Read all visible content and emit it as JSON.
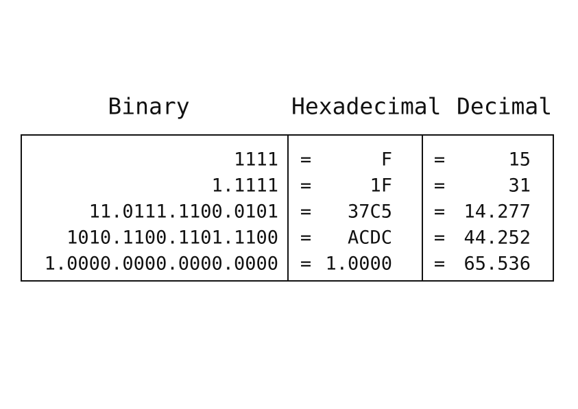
{
  "table": {
    "headers": [
      "Binary",
      "Hexadecimal",
      "Decimal"
    ],
    "rows": [
      [
        "1111",
        "=",
        "F",
        "=",
        "15"
      ],
      [
        "1.1111",
        "=",
        "1F",
        "=",
        "31"
      ],
      [
        "11.0111.1100.0101",
        "=",
        "37C5",
        "=",
        "14.277"
      ],
      [
        "1010.1100.1101.1100",
        "=",
        "ACDC",
        "=",
        "44.252"
      ],
      [
        "1.0000.0000.0000.0000",
        "=",
        "1.0000",
        "=",
        "65.536"
      ]
    ]
  }
}
